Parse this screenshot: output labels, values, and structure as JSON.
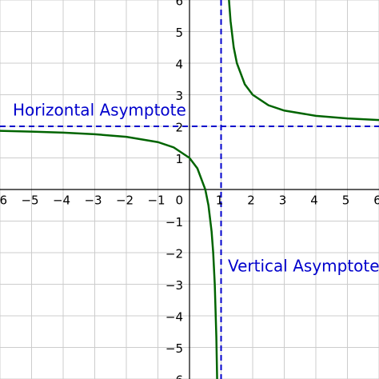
{
  "chart_data": {
    "type": "line",
    "xlim": [
      -6,
      6
    ],
    "ylim": [
      -6,
      6
    ],
    "xticks": [
      {
        "value": -6,
        "label": "−6"
      },
      {
        "value": -5,
        "label": "−5"
      },
      {
        "value": -4,
        "label": "−4"
      },
      {
        "value": -3,
        "label": "−3"
      },
      {
        "value": -2,
        "label": "−2"
      },
      {
        "value": -1,
        "label": "−1"
      },
      0,
      1,
      2,
      3,
      4,
      5,
      6
    ],
    "yticks": [
      {
        "value": -6,
        "label": "−6"
      },
      {
        "value": -5,
        "label": "−5"
      },
      {
        "value": -4,
        "label": "−4"
      },
      {
        "value": -3,
        "label": "−3"
      },
      {
        "value": -2,
        "label": "−2"
      },
      {
        "value": -1,
        "label": "−1"
      },
      0,
      1,
      2,
      3,
      4,
      5,
      6
    ],
    "grid": true,
    "series": [
      {
        "color": "#006400",
        "x": [
          -6,
          -5,
          -4,
          -3,
          -2,
          -1,
          -0.5,
          0,
          0.25,
          0.5,
          0.6,
          0.7,
          0.75,
          0.8,
          0.85,
          0.875
        ],
        "values": [
          1.857,
          1.833,
          1.8,
          1.75,
          1.667,
          1.5,
          1.333,
          1,
          0.667,
          0,
          -0.5,
          -1.333,
          -2,
          -3,
          -4.667,
          -6
        ]
      },
      {
        "color": "#006400",
        "x": [
          1.25,
          1.3,
          1.4,
          1.5,
          1.75,
          2,
          2.5,
          3,
          4,
          5,
          6
        ],
        "values": [
          6,
          5.333,
          4.5,
          4,
          3.333,
          3,
          2.667,
          2.5,
          2.333,
          2.25,
          2.2
        ]
      }
    ],
    "asymptotes": {
      "horizontal": 2,
      "vertical": 1,
      "color": "#0000cc"
    },
    "annotations": [
      "Horizontal Asymptote",
      "Vertical Asymptote"
    ]
  }
}
